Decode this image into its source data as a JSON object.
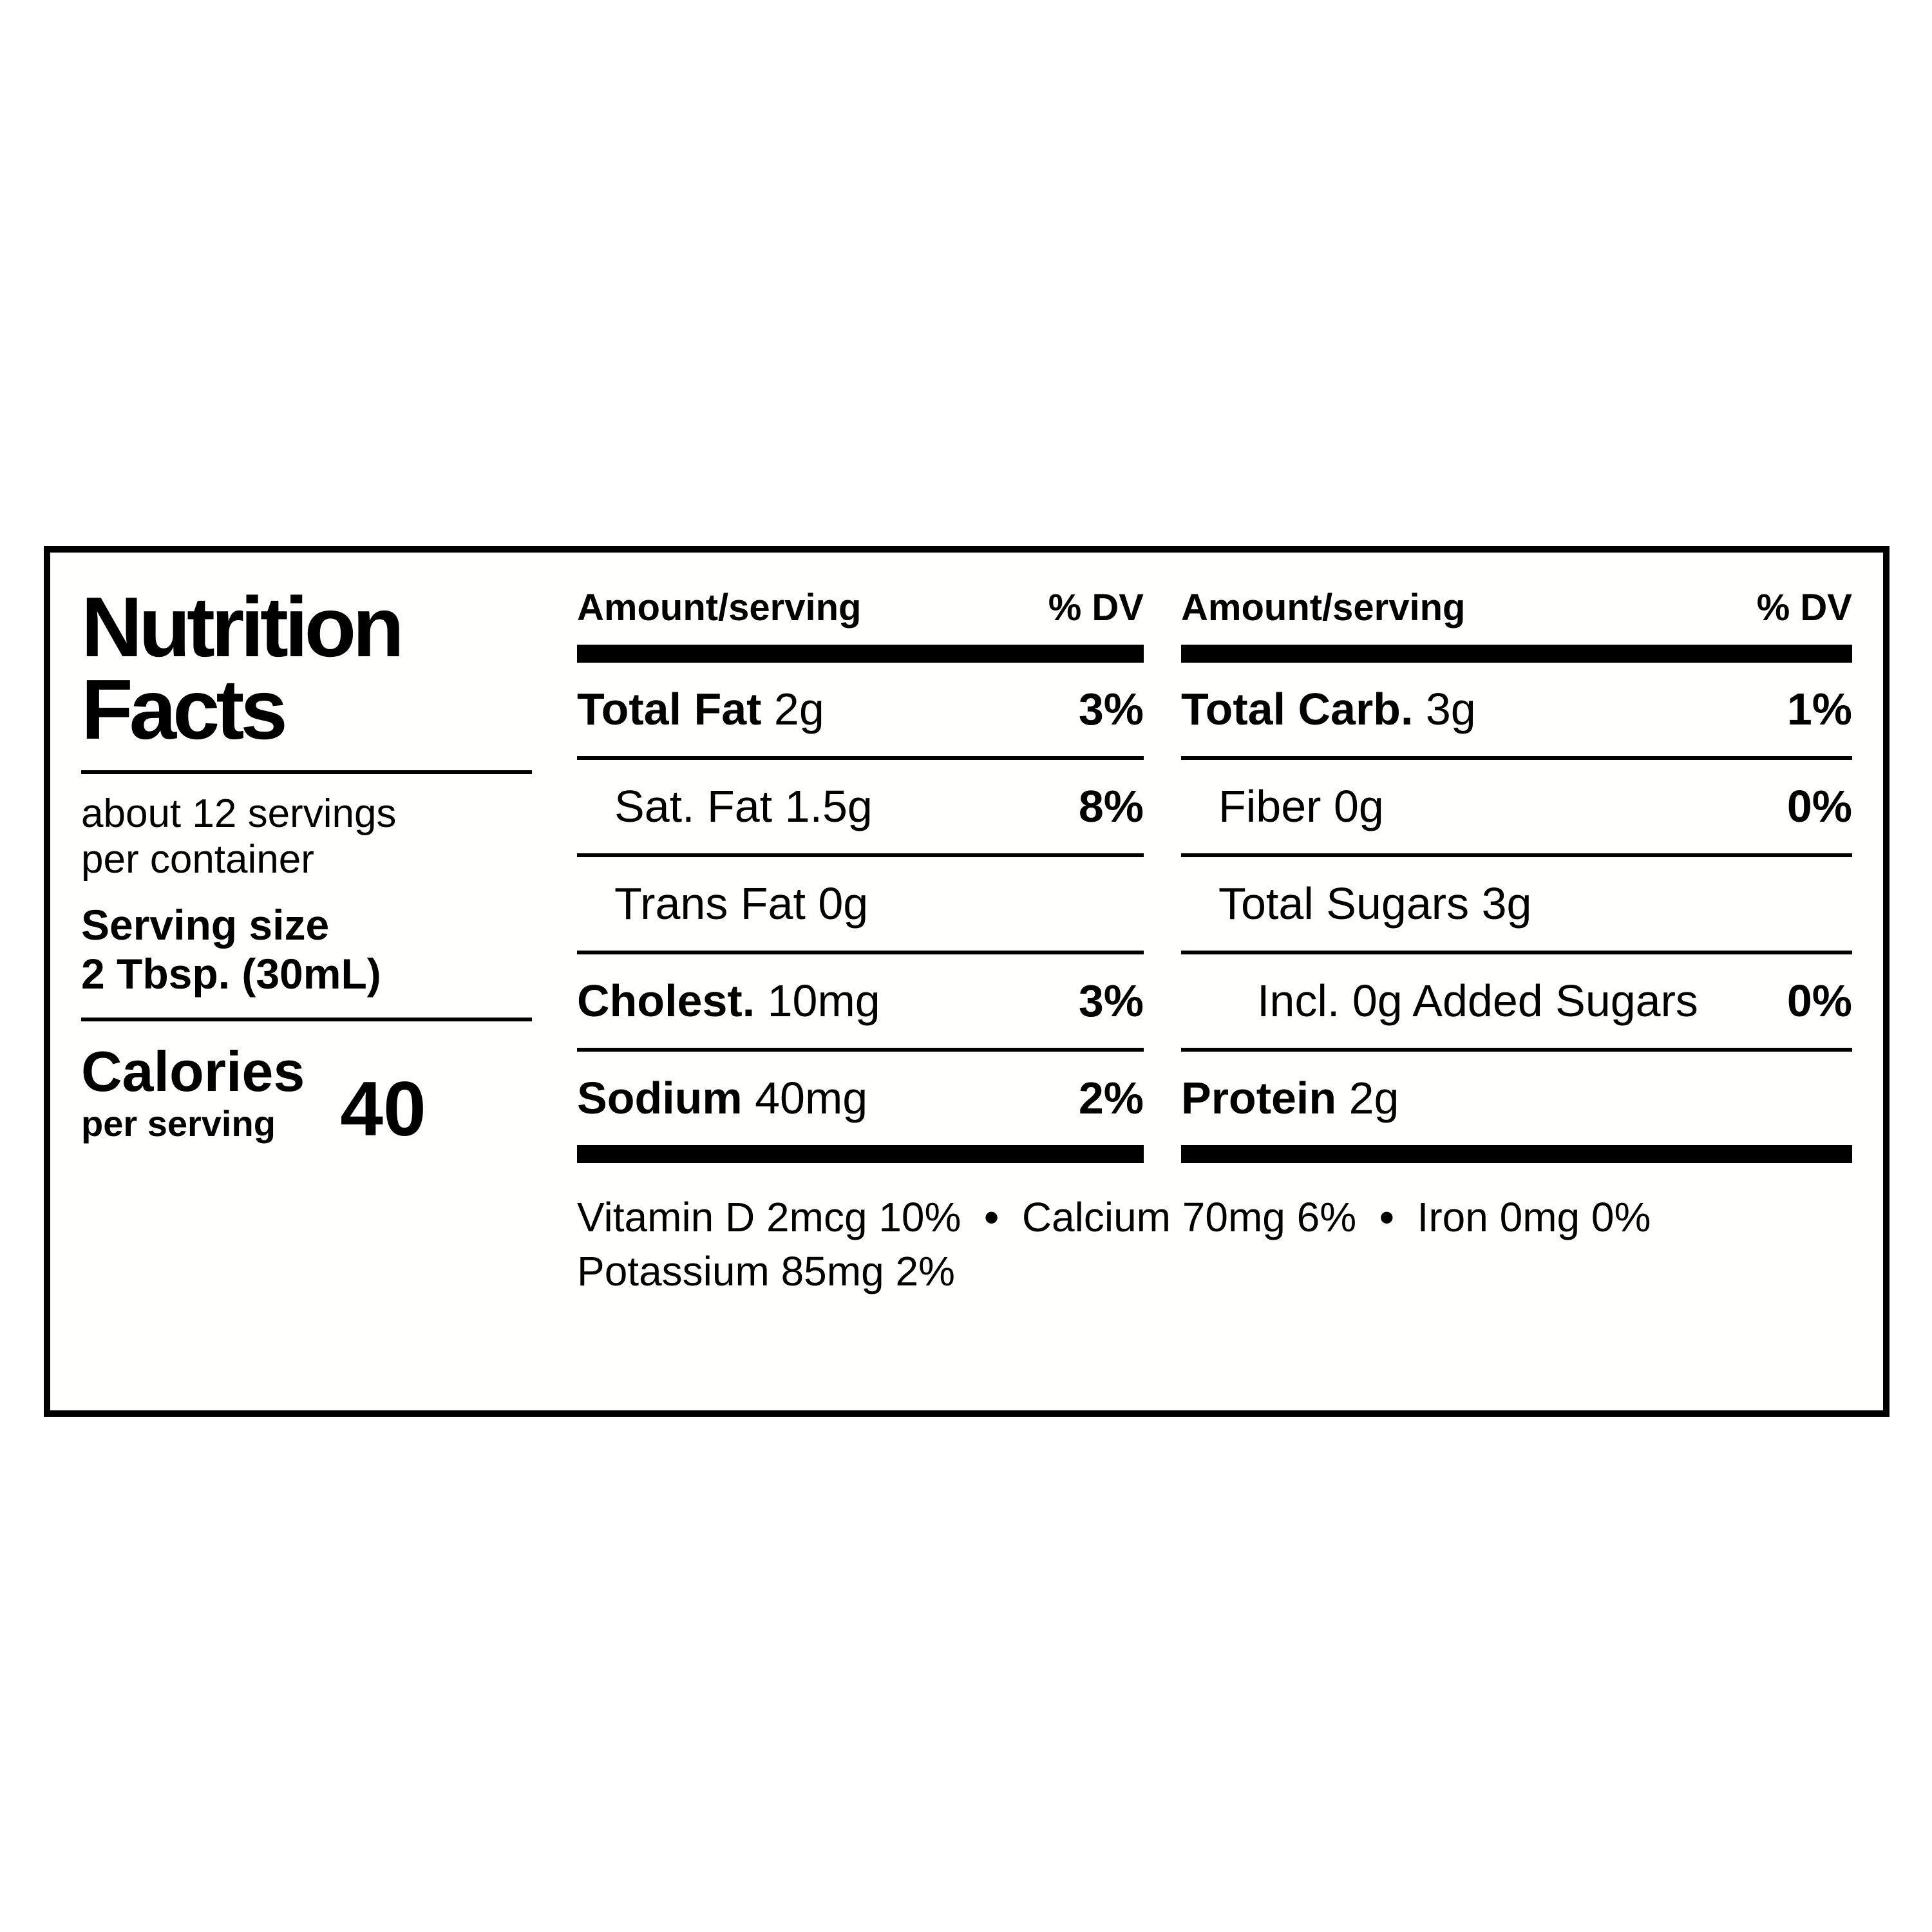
{
  "nutrition_label": {
    "title": {
      "line1": "Nutrition",
      "line2": "Facts"
    },
    "servings": {
      "line1": "about 12 servings",
      "line2": "per container"
    },
    "serving_size": {
      "label": "Serving size",
      "value": "2 Tbsp. (30mL)"
    },
    "calories": {
      "label": "Calories",
      "sublabel": "per serving",
      "value": "40"
    },
    "columns": {
      "amount_header": "Amount/serving",
      "dv_header": "% DV"
    },
    "left_column_rows": [
      {
        "name": "Total Fat",
        "amount": "2g",
        "dv": "3%"
      },
      {
        "name": "Sat. Fat",
        "amount": "1.5g",
        "dv": "8%"
      },
      {
        "name": "Trans Fat",
        "amount": "0g",
        "dv": ""
      },
      {
        "name": "Cholest.",
        "amount": "10mg",
        "dv": "3%"
      },
      {
        "name": "Sodium",
        "amount": "40mg",
        "dv": "2%"
      }
    ],
    "right_column_rows": [
      {
        "name": "Total Carb.",
        "amount": "3g",
        "dv": "1%"
      },
      {
        "name": "Fiber",
        "amount": "0g",
        "dv": "0%"
      },
      {
        "name": "Total Sugars",
        "amount": "3g",
        "dv": ""
      },
      {
        "name": "Incl. 0g Added Sugars",
        "amount": "",
        "dv": "0%"
      },
      {
        "name": "Protein",
        "amount": "2g",
        "dv": ""
      }
    ],
    "micronutrients": {
      "separator": "•",
      "line1": [
        {
          "text": "Vitamin D 2mcg 10%"
        },
        {
          "text": "Calcium 70mg 6%"
        },
        {
          "text": "Iron 0mg 0%"
        }
      ],
      "line2": "Potassium 85mg 2%"
    },
    "colors": {
      "text": "#000000",
      "background": "#ffffff"
    }
  }
}
